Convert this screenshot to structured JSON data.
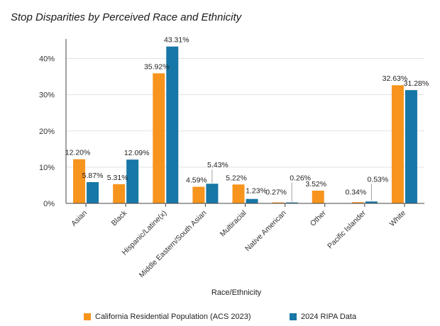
{
  "chart_data": {
    "type": "bar",
    "title": "Stop Disparities by Perceived Race and Ethnicity",
    "xlabel": "Race/Ethnicity",
    "ylabel": "",
    "ylim": [
      0,
      45
    ],
    "yticks": [
      0,
      10,
      20,
      30,
      40
    ],
    "ytick_labels": [
      "0%",
      "10%",
      "20%",
      "30%",
      "40%"
    ],
    "categories": [
      "Asian",
      "Black",
      "Hispanic/Latine(x)",
      "Middle Eastern/South Asian",
      "Multiracial",
      "Native American",
      "Other",
      "Pacific Islander",
      "White"
    ],
    "series": [
      {
        "name": "California Residential Population (ACS 2023)",
        "color": "#f7941d",
        "values": [
          12.2,
          5.31,
          35.92,
          4.59,
          5.22,
          0.27,
          3.52,
          0.34,
          32.63
        ],
        "labels": [
          "12.20%",
          "5.31%",
          "35.92%",
          "4.59%",
          "5.22%",
          "0.27%",
          "3.52%",
          "0.34%",
          "32.63%"
        ]
      },
      {
        "name": "2024 RIPA Data",
        "color": "#1777a6",
        "values": [
          5.87,
          12.09,
          43.31,
          5.43,
          1.23,
          0.26,
          null,
          0.53,
          31.28
        ],
        "labels": [
          "5.87%",
          "12.09%",
          "43.31%",
          "5.43%",
          "1.23%",
          "0.26%",
          null,
          "0.53%",
          "31.28%"
        ]
      }
    ],
    "legend_position": "bottom"
  }
}
